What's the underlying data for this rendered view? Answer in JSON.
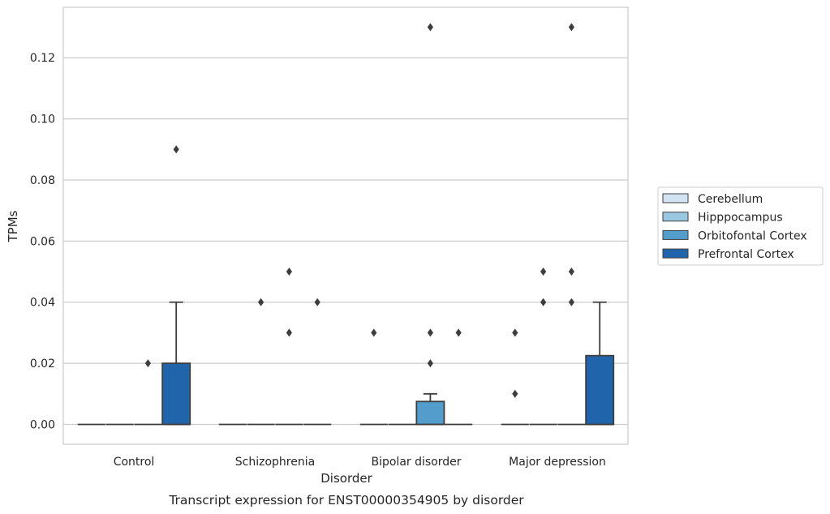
{
  "chart_data": {
    "type": "box",
    "title": "",
    "caption": "Transcript expression for ENST00000354905 by disorder",
    "xlabel": "Disorder",
    "ylabel": "TPMs",
    "ylim": [
      -0.0065,
      0.1365
    ],
    "yticks": [
      0.0,
      0.02,
      0.04,
      0.06,
      0.08,
      0.1,
      0.12
    ],
    "ytick_labels": [
      "0.00",
      "0.02",
      "0.04",
      "0.06",
      "0.08",
      "0.10",
      "0.12"
    ],
    "grid": true,
    "legend_position": "outside-right",
    "categories": [
      "Control",
      "Schizophrenia",
      "Bipolar disorder",
      "Major depression"
    ],
    "series": [
      {
        "name": "Cerebellum",
        "color": "#d2e3f3"
      },
      {
        "name": "Hipppocampus",
        "color": "#9ac8e0"
      },
      {
        "name": "Orbitofontal Cortex",
        "color": "#529dcc"
      },
      {
        "name": "Prefrontal Cortex",
        "color": "#2065ab"
      }
    ],
    "boxes": [
      {
        "category": "Control",
        "series": "Cerebellum",
        "q1": 0,
        "median": 0,
        "q3": 0,
        "whisker_low": 0,
        "whisker_high": 0,
        "outliers": []
      },
      {
        "category": "Control",
        "series": "Hipppocampus",
        "q1": 0,
        "median": 0,
        "q3": 0,
        "whisker_low": 0,
        "whisker_high": 0,
        "outliers": []
      },
      {
        "category": "Control",
        "series": "Orbitofontal Cortex",
        "q1": 0,
        "median": 0,
        "q3": 0,
        "whisker_low": 0,
        "whisker_high": 0,
        "outliers": [
          0.02
        ]
      },
      {
        "category": "Control",
        "series": "Prefrontal Cortex",
        "q1": 0,
        "median": 0,
        "q3": 0.02,
        "whisker_low": 0,
        "whisker_high": 0.04,
        "outliers": [
          0.09
        ]
      },
      {
        "category": "Schizophrenia",
        "series": "Cerebellum",
        "q1": 0,
        "median": 0,
        "q3": 0,
        "whisker_low": 0,
        "whisker_high": 0,
        "outliers": []
      },
      {
        "category": "Schizophrenia",
        "series": "Hipppocampus",
        "q1": 0,
        "median": 0,
        "q3": 0,
        "whisker_low": 0,
        "whisker_high": 0,
        "outliers": [
          0.04
        ]
      },
      {
        "category": "Schizophrenia",
        "series": "Orbitofontal Cortex",
        "q1": 0,
        "median": 0,
        "q3": 0,
        "whisker_low": 0,
        "whisker_high": 0,
        "outliers": [
          0.05,
          0.03
        ]
      },
      {
        "category": "Schizophrenia",
        "series": "Prefrontal Cortex",
        "q1": 0,
        "median": 0,
        "q3": 0,
        "whisker_low": 0,
        "whisker_high": 0,
        "outliers": [
          0.04
        ]
      },
      {
        "category": "Bipolar disorder",
        "series": "Cerebellum",
        "q1": 0,
        "median": 0,
        "q3": 0,
        "whisker_low": 0,
        "whisker_high": 0,
        "outliers": [
          0.03
        ]
      },
      {
        "category": "Bipolar disorder",
        "series": "Hipppocampus",
        "q1": 0,
        "median": 0,
        "q3": 0,
        "whisker_low": 0,
        "whisker_high": 0,
        "outliers": []
      },
      {
        "category": "Bipolar disorder",
        "series": "Orbitofontal Cortex",
        "q1": 0,
        "median": 0,
        "q3": 0.0075,
        "whisker_low": 0,
        "whisker_high": 0.01,
        "outliers": [
          0.13,
          0.03,
          0.02
        ]
      },
      {
        "category": "Bipolar disorder",
        "series": "Prefrontal Cortex",
        "q1": 0,
        "median": 0,
        "q3": 0,
        "whisker_low": 0,
        "whisker_high": 0,
        "outliers": [
          0.03
        ]
      },
      {
        "category": "Major depression",
        "series": "Cerebellum",
        "q1": 0,
        "median": 0,
        "q3": 0,
        "whisker_low": 0,
        "whisker_high": 0,
        "outliers": [
          0.03,
          0.01
        ]
      },
      {
        "category": "Major depression",
        "series": "Hipppocampus",
        "q1": 0,
        "median": 0,
        "q3": 0,
        "whisker_low": 0,
        "whisker_high": 0,
        "outliers": [
          0.05,
          0.04
        ]
      },
      {
        "category": "Major depression",
        "series": "Orbitofontal Cortex",
        "q1": 0,
        "median": 0,
        "q3": 0,
        "whisker_low": 0,
        "whisker_high": 0,
        "outliers": [
          0.13,
          0.05,
          0.04
        ]
      },
      {
        "category": "Major depression",
        "series": "Prefrontal Cortex",
        "q1": 0,
        "median": 0,
        "q3": 0.0225,
        "whisker_low": 0,
        "whisker_high": 0.04,
        "outliers": []
      }
    ]
  }
}
